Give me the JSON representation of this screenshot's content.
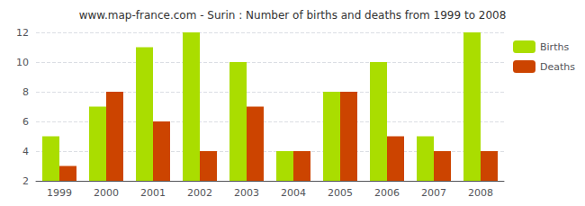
{
  "chart_data": {
    "type": "bar",
    "title": "www.map-france.com - Surin : Number of births and deaths from 1999 to 2008",
    "categories": [
      "1999",
      "2000",
      "2001",
      "2002",
      "2003",
      "2004",
      "2005",
      "2006",
      "2007",
      "2008"
    ],
    "series": [
      {
        "name": "Births",
        "color": "#aadd00",
        "values": [
          5,
          7,
          11,
          12,
          10,
          4,
          8,
          10,
          5,
          12
        ]
      },
      {
        "name": "Deaths",
        "color": "#cc4400",
        "values": [
          3,
          8,
          6,
          4,
          7,
          4,
          8,
          5,
          4,
          4
        ]
      }
    ],
    "ylim": [
      2,
      12
    ],
    "yticks": [
      2,
      4,
      6,
      8,
      10,
      12
    ],
    "grid": true,
    "legend": "upper right"
  }
}
